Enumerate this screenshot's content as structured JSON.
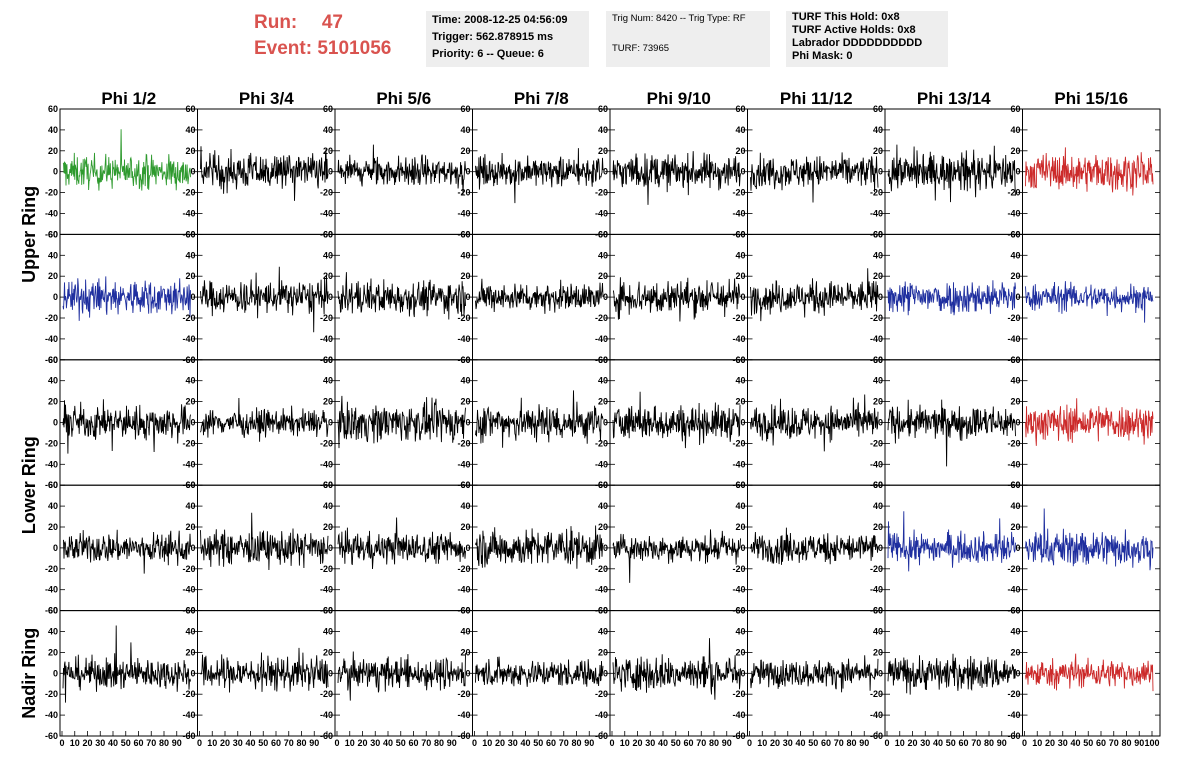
{
  "run_label": "Run:",
  "run_value": "47",
  "event_label": "Event:",
  "event_value": "5101056",
  "info": {
    "time": "Time: 2008-12-25 04:56:09",
    "trigger": "Trigger: 562.878915 ms",
    "priority": "Priority: 6 -- Queue: 6",
    "trig": "Trig Num: 8420 -- Trig Type: RF",
    "turf": "TURF: 73965",
    "this_hold": "TURF This Hold: 0x8",
    "active_holds": "TURF Active Holds: 0x8",
    "labrador": "Labrador DDDDDDDDDD",
    "phi_mask": "Phi Mask: 0"
  },
  "colors": {
    "black": "#000000",
    "green": "#2e9a2e",
    "blue": "#1f2f9f",
    "red": "#cc2a2a",
    "label_red": "#d9534f"
  },
  "chart_data": {
    "type": "line",
    "columns": [
      "Phi 1/2",
      "Phi 3/4",
      "Phi 5/6",
      "Phi 7/8",
      "Phi 9/10",
      "Phi 11/12",
      "Phi 13/14",
      "Phi 15/16"
    ],
    "row_groups": [
      {
        "label": "Upper Ring"
      },
      {
        "label": "Lower Ring"
      },
      {
        "label": "Nadir Ring"
      }
    ],
    "y_range": [
      -60,
      60
    ],
    "y_ticks": [
      "60",
      "40",
      "20",
      "0",
      "-20",
      "-40",
      "-60"
    ],
    "x_range": [
      0,
      100
    ],
    "x_ticks": [
      "0",
      "10",
      "20",
      "30",
      "40",
      "50",
      "60",
      "70",
      "80",
      "90",
      "100"
    ],
    "trace_colors": [
      [
        "green",
        "black",
        "black",
        "black",
        "black",
        "black",
        "black",
        "red"
      ],
      [
        "blue",
        "black",
        "black",
        "black",
        "black",
        "black",
        "blue",
        "blue"
      ],
      [
        "black",
        "black",
        "black",
        "black",
        "black",
        "black",
        "black",
        "red"
      ],
      [
        "black",
        "black",
        "black",
        "black",
        "black",
        "black",
        "blue",
        "blue"
      ],
      [
        "black",
        "black",
        "black",
        "black",
        "black",
        "black",
        "black",
        "red"
      ]
    ]
  }
}
